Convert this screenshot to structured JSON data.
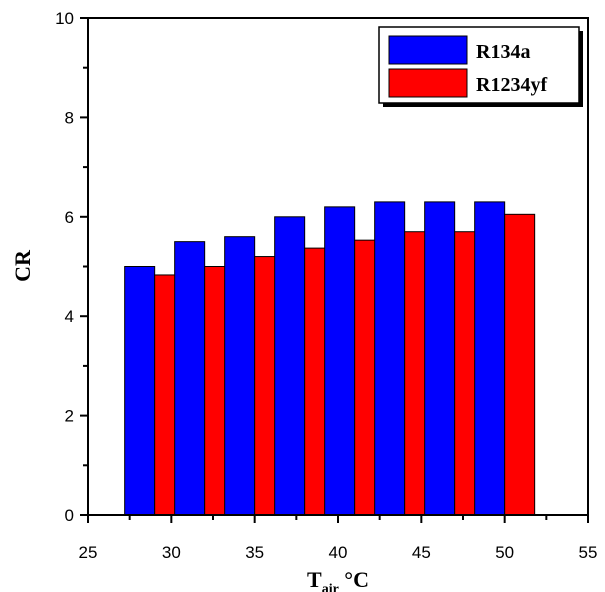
{
  "chart_data": {
    "type": "bar",
    "x": [
      29,
      32,
      35,
      38,
      41,
      44,
      47,
      50
    ],
    "series": [
      {
        "name": "R134a",
        "color": "#0000ff",
        "values": [
          5.0,
          5.5,
          5.6,
          6.0,
          6.2,
          6.3,
          6.3,
          6.3
        ]
      },
      {
        "name": "R1234yf",
        "color": "#ff0000",
        "values": [
          4.83,
          5.0,
          5.2,
          5.37,
          5.53,
          5.7,
          5.7,
          6.05
        ]
      }
    ],
    "xlim": [
      25,
      55
    ],
    "ylim": [
      0,
      10
    ],
    "x_ticks": [
      "25",
      "30",
      "35",
      "40",
      "45",
      "50",
      "55"
    ],
    "y_ticks": [
      "0",
      "2",
      "4",
      "6",
      "8",
      "10"
    ],
    "xlabel_main": "T",
    "xlabel_sub": "air",
    "xlabel_unit": " °C",
    "ylabel": "CR",
    "title": "",
    "legend_position": "top-right",
    "grid": false
  }
}
